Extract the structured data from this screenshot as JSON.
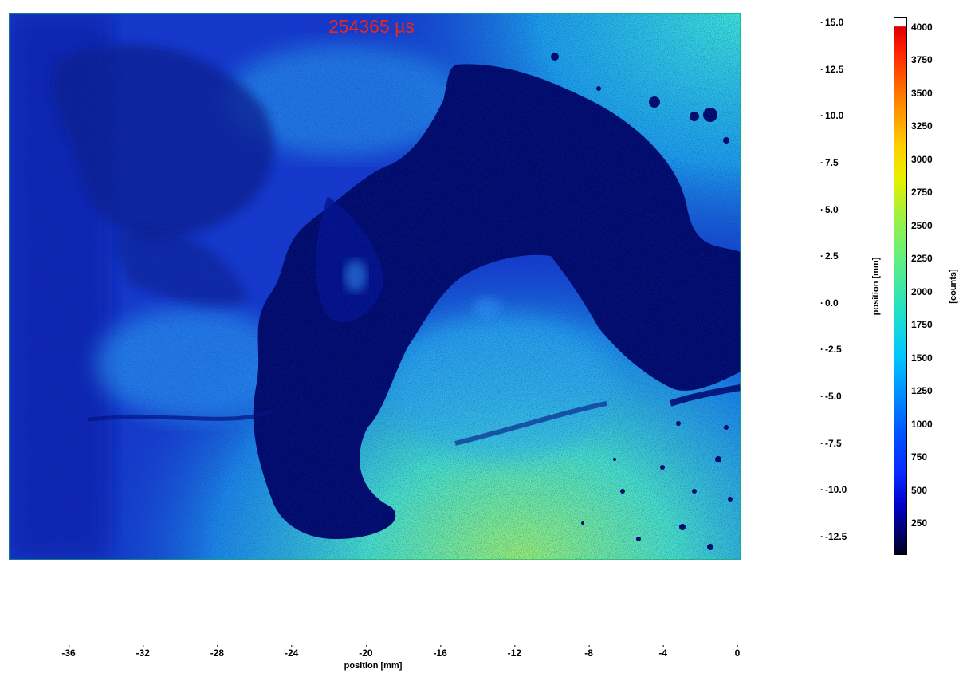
{
  "overlay_text": "254365 µs",
  "colors": {
    "timestamp": "#e8281e",
    "background_field": "#1432c8",
    "dark_region": "#04066e",
    "bright_region": "#3cd2dc"
  },
  "colormap": "jet",
  "chart_data": [
    {
      "type": "heatmap",
      "title": "",
      "xlabel": "position [mm]",
      "ylabel": "position [mm]",
      "xlim": [
        -38.5,
        0
      ],
      "ylim": [
        -14,
        15
      ],
      "x_ticks": [
        "-36",
        "-32",
        "-28",
        "-24",
        "-20",
        "-16",
        "-12",
        "-8",
        "-4",
        "0"
      ],
      "x_tick_values": [
        -36,
        -32,
        -28,
        -24,
        -20,
        -16,
        -12,
        -8,
        -4,
        0
      ],
      "y_ticks": [
        "15.0",
        "12.5",
        "10.0",
        "7.5",
        "5.0",
        "2.5",
        "0.0",
        "-2.5",
        "-5.0",
        "-7.5",
        "-10.0",
        "-12.5"
      ],
      "y_tick_values": [
        15,
        12.5,
        10,
        7.5,
        5,
        2.5,
        0,
        -2.5,
        -5,
        -7.5,
        -10,
        -12.5
      ],
      "grid": false,
      "colorbar": {
        "label": "[counts]",
        "range": [
          0,
          4095
        ],
        "ticks": [
          "4000",
          "3750",
          "3500",
          "3250",
          "3000",
          "2750",
          "2500",
          "2250",
          "2000",
          "1750",
          "1500",
          "1250",
          "1000",
          "750",
          "500",
          "250"
        ],
        "tick_values": [
          4000,
          3750,
          3500,
          3250,
          3000,
          2750,
          2500,
          2250,
          2000,
          1750,
          1500,
          1250,
          1000,
          750,
          500,
          250
        ]
      }
    }
  ]
}
